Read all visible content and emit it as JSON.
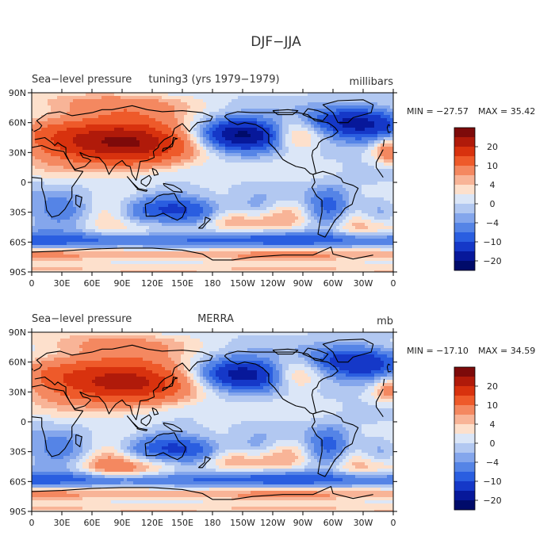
{
  "figure_title": "DJF−JJA",
  "chart_data": [
    {
      "type": "heatmap",
      "panel_left_label": "Sea−level pressure",
      "panel_center_label": "tuning3 (yrs 1979−1979)",
      "units": "millibars",
      "min_label": "MIN = −27.57",
      "max_label": "MAX =  35.42",
      "min": -27.57,
      "max": 35.42,
      "x_ticks": [
        "0",
        "30E",
        "60E",
        "90E",
        "120E",
        "150E",
        "180",
        "150W",
        "120W",
        "90W",
        "60W",
        "30W",
        "0"
      ],
      "y_ticks": [
        "90N",
        "60N",
        "30N",
        "0",
        "30S",
        "60S",
        "90S"
      ],
      "colorbar_labels": [
        "20",
        "10",
        "4",
        "0",
        "−4",
        "−10",
        "−20"
      ],
      "x_range": [
        0,
        360
      ],
      "y_range": [
        -90,
        90
      ]
    },
    {
      "type": "heatmap",
      "panel_left_label": "Sea−level pressure",
      "panel_center_label": "MERRA",
      "units": "mb",
      "min_label": "MIN = −17.10",
      "max_label": "MAX =  34.59",
      "min": -17.1,
      "max": 34.59,
      "x_ticks": [
        "0",
        "30E",
        "60E",
        "90E",
        "120E",
        "150E",
        "180",
        "150W",
        "120W",
        "90W",
        "60W",
        "30W",
        "0"
      ],
      "y_ticks": [
        "90N",
        "60N",
        "30N",
        "0",
        "30S",
        "60S",
        "90S"
      ],
      "colorbar_labels": [
        "20",
        "10",
        "4",
        "0",
        "−4",
        "−10",
        "−20"
      ],
      "x_range": [
        0,
        360
      ],
      "y_range": [
        -90,
        90
      ]
    }
  ],
  "colors": {
    "levels": [
      "#7d0a0a",
      "#b01a0a",
      "#d8320e",
      "#ee5a2a",
      "#f48860",
      "#f8b497",
      "#fde0cc",
      "#dbe6f7",
      "#b2c8f1",
      "#84a6ec",
      "#5584e6",
      "#2a5ee0",
      "#1538c8",
      "#07189a",
      "#000b6a"
    ]
  }
}
